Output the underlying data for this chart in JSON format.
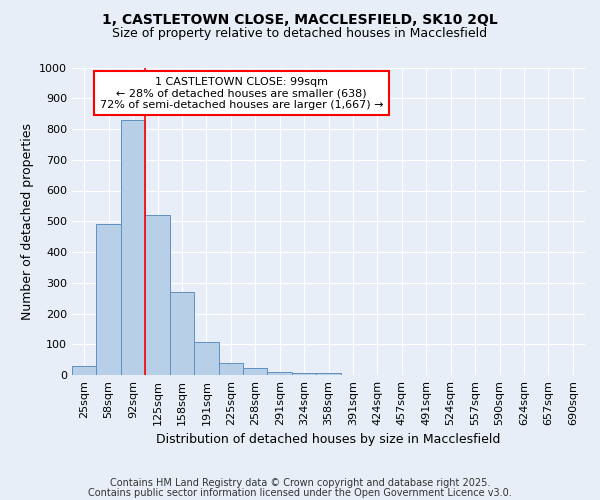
{
  "title_line1": "1, CASTLETOWN CLOSE, MACCLESFIELD, SK10 2QL",
  "title_line2": "Size of property relative to detached houses in Macclesfield",
  "xlabel": "Distribution of detached houses by size in Macclesfield",
  "ylabel": "Number of detached properties",
  "categories": [
    "25sqm",
    "58sqm",
    "92sqm",
    "125sqm",
    "158sqm",
    "191sqm",
    "225sqm",
    "258sqm",
    "291sqm",
    "324sqm",
    "358sqm",
    "391sqm",
    "424sqm",
    "457sqm",
    "491sqm",
    "524sqm",
    "557sqm",
    "590sqm",
    "624sqm",
    "657sqm",
    "690sqm"
  ],
  "values": [
    28,
    490,
    830,
    520,
    270,
    108,
    38,
    22,
    10,
    5,
    8,
    0,
    0,
    0,
    0,
    0,
    0,
    0,
    0,
    0,
    0
  ],
  "bar_color": "#b8cfe8",
  "bar_edge_color": "#6090c0",
  "vline_x_index": 2,
  "vline_color": "red",
  "annotation_text": "1 CASTLETOWN CLOSE: 99sqm\n← 28% of detached houses are smaller (638)\n72% of semi-detached houses are larger (1,667) →",
  "annotation_box_color": "white",
  "annotation_box_edge_color": "red",
  "ylim": [
    0,
    1000
  ],
  "yticks": [
    0,
    100,
    200,
    300,
    400,
    500,
    600,
    700,
    800,
    900,
    1000
  ],
  "footnote_line1": "Contains HM Land Registry data © Crown copyright and database right 2025.",
  "footnote_line2": "Contains public sector information licensed under the Open Government Licence v3.0.",
  "bg_color": "#e8eef8",
  "plot_bg_color": "#e8eef8",
  "title_fontsize": 10,
  "subtitle_fontsize": 9,
  "axis_label_fontsize": 9,
  "tick_fontsize": 8,
  "annotation_fontsize": 8,
  "footnote_fontsize": 7
}
